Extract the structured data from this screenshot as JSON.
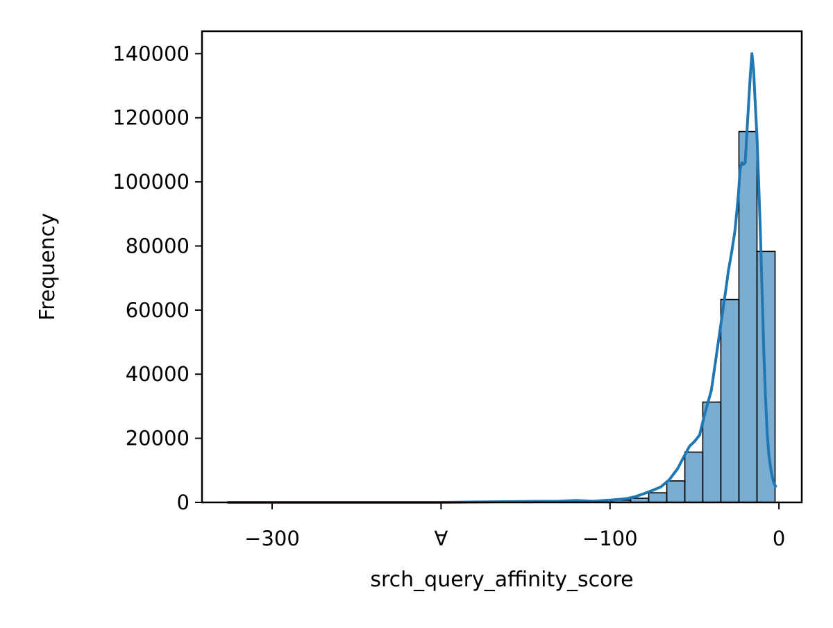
{
  "chart_data": {
    "type": "bar",
    "subtype": "histogram with density curve",
    "title": "",
    "xlabel": "srch_query_affinity_score",
    "ylabel": "Frequency",
    "xlim": [
      -341.5,
      13.5
    ],
    "ylim": [
      0,
      147000
    ],
    "x_ticks": [
      -300,
      -200,
      -100,
      0
    ],
    "x_tick_labels": [
      "−300",
      "∀",
      "−100",
      "0"
    ],
    "y_ticks": [
      0,
      20000,
      40000,
      60000,
      80000,
      100000,
      120000,
      140000
    ],
    "y_tick_labels": [
      "0",
      "20000",
      "40000",
      "60000",
      "80000",
      "100000",
      "120000",
      "140000"
    ],
    "grid": false,
    "legend": "none",
    "bar_color": "#1f77b4",
    "bar_alpha": 0.6,
    "bar_edge_color": "#000000",
    "curve_color": "#1f77b4",
    "bins": [
      {
        "x0": -130.5,
        "x1": -119.8,
        "value": 250
      },
      {
        "x0": -119.8,
        "x1": -109.1,
        "value": 300
      },
      {
        "x0": -109.1,
        "x1": -98.5,
        "value": 450
      },
      {
        "x0": -98.5,
        "x1": -87.8,
        "value": 700
      },
      {
        "x0": -87.8,
        "x1": -77.1,
        "value": 1300
      },
      {
        "x0": -77.1,
        "x1": -66.4,
        "value": 3000
      },
      {
        "x0": -66.4,
        "x1": -55.7,
        "value": 6700
      },
      {
        "x0": -55.7,
        "x1": -45.1,
        "value": 15700
      },
      {
        "x0": -45.1,
        "x1": -34.4,
        "value": 31300
      },
      {
        "x0": -34.4,
        "x1": -23.7,
        "value": 63300
      },
      {
        "x0": -23.7,
        "x1": -13.0,
        "value": 115700
      },
      {
        "x0": -13.0,
        "x1": -2.3,
        "value": 78300
      }
    ],
    "density_curve": {
      "x": [
        -326,
        -300,
        -250,
        -200,
        -150,
        -130,
        -120,
        -110,
        -100,
        -90,
        -85,
        -80,
        -75,
        -70,
        -65,
        -60,
        -57,
        -53,
        -50,
        -47,
        -44,
        -40,
        -37,
        -34,
        -31,
        -30,
        -28,
        -26,
        -24,
        -23,
        -22,
        -21,
        -20,
        -19,
        -18,
        -17,
        -16,
        -15,
        -14,
        -13,
        -12,
        -11,
        -10,
        -9,
        -8,
        -7,
        -6,
        -5,
        -4,
        -3,
        -2
      ],
      "y": [
        0,
        0,
        0,
        0,
        300,
        400,
        600,
        400,
        700,
        1200,
        1800,
        2700,
        3700,
        4800,
        7000,
        10500,
        13500,
        17500,
        19000,
        21000,
        27500,
        35000,
        46000,
        57000,
        68000,
        72000,
        78000,
        85000,
        96000,
        104000,
        106000,
        105500,
        106000,
        115000,
        124000,
        133000,
        140000,
        135000,
        124000,
        114000,
        100000,
        84000,
        66000,
        48000,
        33000,
        22000,
        15000,
        11000,
        8000,
        6000,
        5000
      ]
    }
  }
}
